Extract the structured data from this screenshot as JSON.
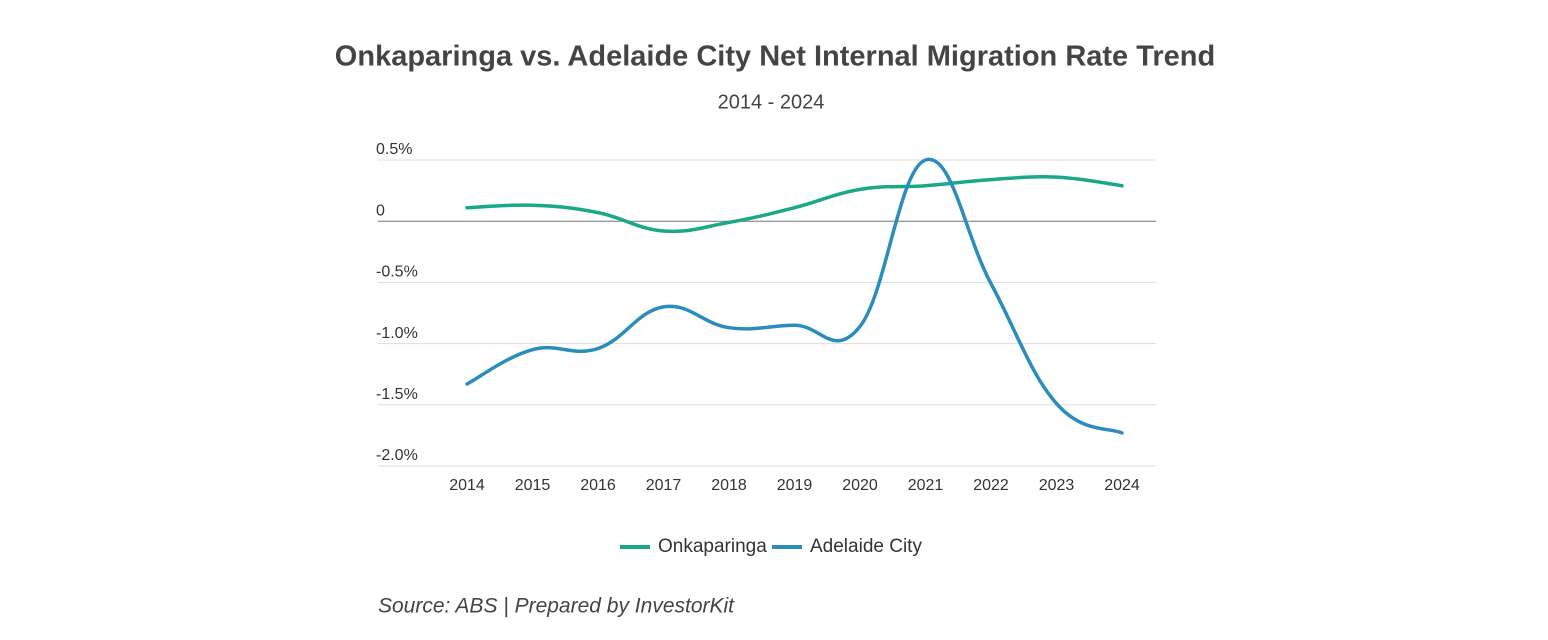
{
  "chart_data": {
    "type": "line",
    "title": "Onkaparinga vs. Adelaide City Net Internal Migration Rate Trend",
    "subtitle": "2014 - 2024",
    "categories": [
      "2014",
      "2015",
      "2016",
      "2017",
      "2018",
      "2019",
      "2020",
      "2021",
      "2022",
      "2023",
      "2024"
    ],
    "series": [
      {
        "name": "Onkaparinga",
        "color": "#1aa987",
        "values": [
          0.11,
          0.13,
          0.07,
          -0.08,
          -0.01,
          0.11,
          0.26,
          0.29,
          0.34,
          0.36,
          0.29
        ]
      },
      {
        "name": "Adelaide City",
        "color": "#2b8cbe",
        "values": [
          -1.33,
          -1.05,
          -1.04,
          -0.7,
          -0.87,
          -0.85,
          -0.86,
          0.5,
          -0.51,
          -1.49,
          -1.73
        ]
      }
    ],
    "ylim": [
      -2.0,
      0.5
    ],
    "yticks": [
      {
        "value": 0.5,
        "label": "0.5%"
      },
      0,
      {
        "value": -0.5,
        "label": "-0.5%"
      },
      {
        "value": -1.0,
        "label": "-1.0%"
      },
      {
        "value": -1.5,
        "label": "-1.5%"
      },
      {
        "value": -2.0,
        "label": "-2.0%"
      }
    ],
    "grid": true,
    "legend": "bottom",
    "source": "Source: ABS | Prepared by InvestorKit"
  }
}
